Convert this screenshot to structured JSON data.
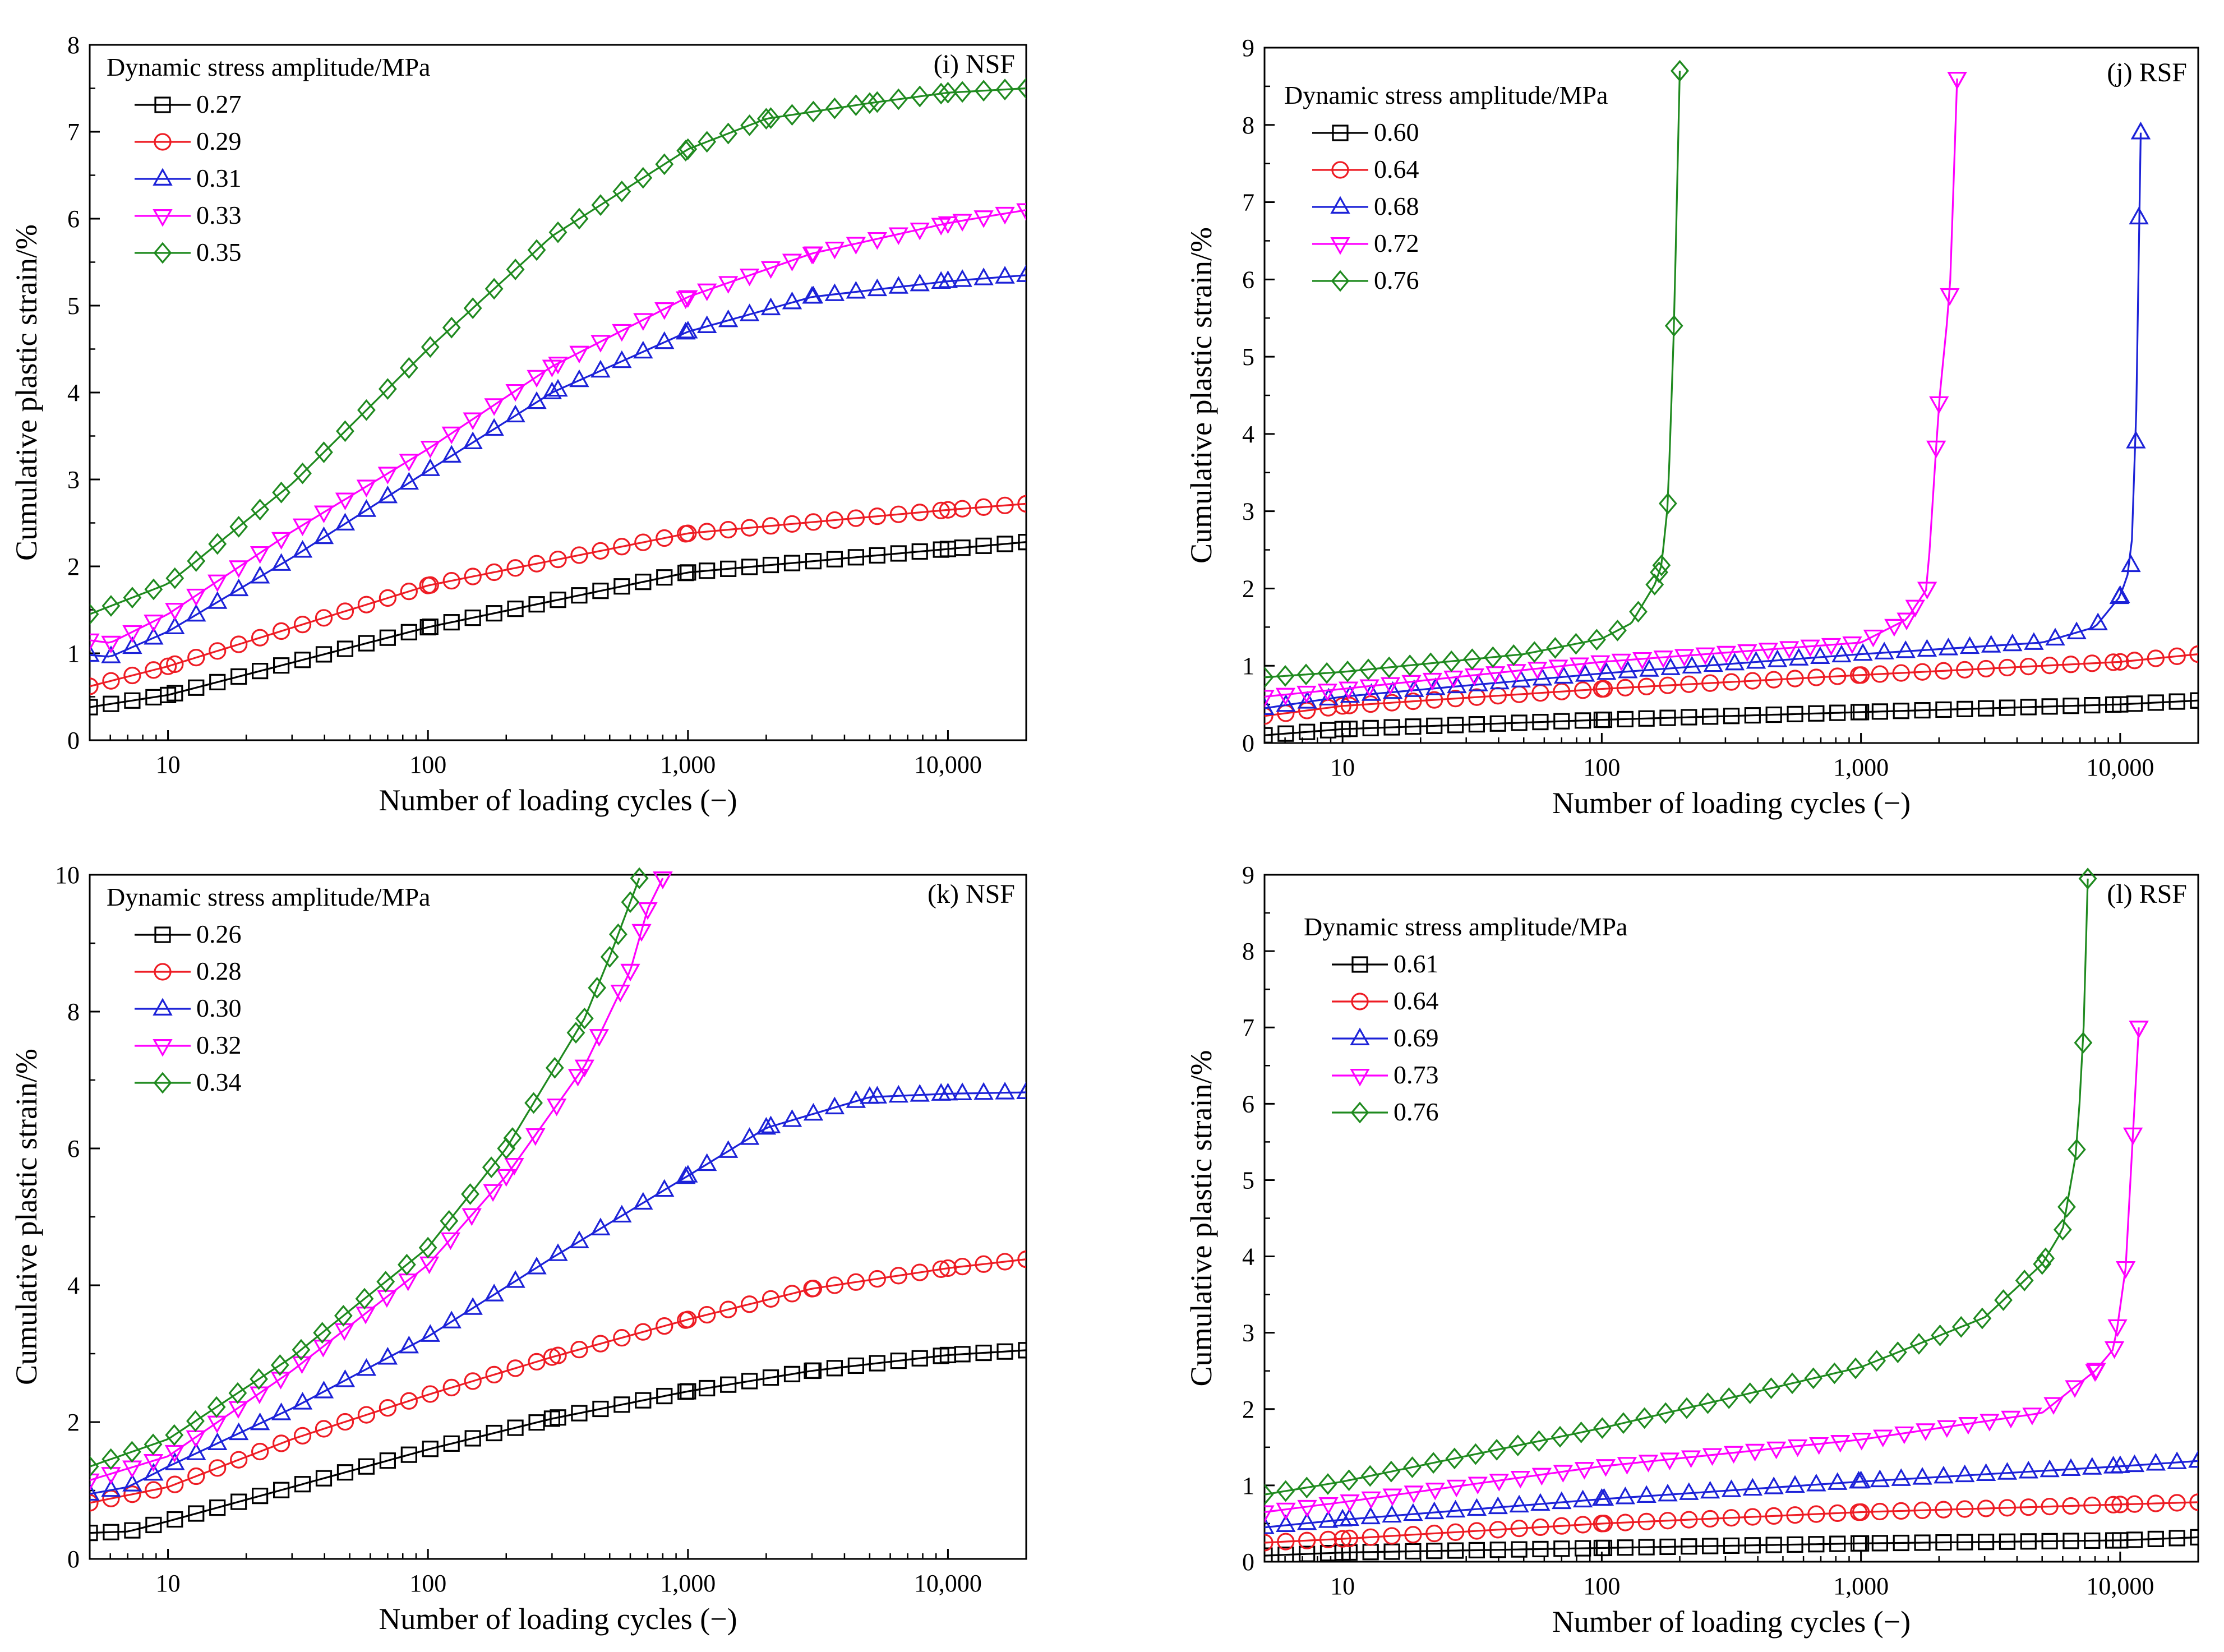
{
  "figure": {
    "colors": {
      "black": "#000000",
      "red": "#ee1c24",
      "blue": "#1c22d8",
      "magenta": "#ff00ff",
      "green": "#1f8a1f"
    },
    "markers": {
      "black": "square",
      "red": "circle",
      "blue": "triangle-up",
      "magenta": "triangle-down",
      "green": "diamond"
    }
  },
  "chart_data": [
    {
      "type": "line",
      "panel": "(i) NSF",
      "xlabel": "Number of loading cycles (−)",
      "ylabel": "Cumulative plastic strain/%",
      "xscale": "log",
      "xlim": [
        5,
        20000
      ],
      "ylim": [
        0,
        8
      ],
      "yticks": [
        0,
        1,
        2,
        3,
        4,
        5,
        6,
        7,
        8
      ],
      "ytick_labels": [
        "0",
        "1",
        "2",
        "3",
        "4",
        "5",
        "6",
        "7",
        "8"
      ],
      "xticks": [
        10,
        100,
        1000,
        10000
      ],
      "xtick_labels": [
        "10",
        "100",
        "1,000",
        "10,000"
      ],
      "legend_title": "Dynamic stress amplitude/MPa",
      "legend_position": "top-left",
      "series": [
        {
          "name": "0.27",
          "color": "black",
          "x": [
            5,
            10,
            100,
            1000,
            10000,
            20000
          ],
          "y": [
            0.38,
            0.52,
            1.3,
            1.93,
            2.2,
            2.28
          ]
        },
        {
          "name": "0.29",
          "color": "red",
          "x": [
            5,
            10,
            100,
            1000,
            10000,
            20000
          ],
          "y": [
            0.62,
            0.85,
            1.78,
            2.38,
            2.65,
            2.72
          ]
        },
        {
          "name": "0.31",
          "color": "blue",
          "x": [
            5,
            6,
            10,
            30,
            100,
            300,
            1000,
            3000,
            10000,
            20000
          ],
          "y": [
            0.98,
            0.96,
            1.25,
            2.1,
            3.1,
            4.0,
            4.7,
            5.1,
            5.28,
            5.35
          ]
        },
        {
          "name": "0.33",
          "color": "magenta",
          "x": [
            5,
            6,
            10,
            30,
            100,
            300,
            1000,
            3000,
            10000,
            20000
          ],
          "y": [
            1.15,
            1.12,
            1.45,
            2.4,
            3.35,
            4.3,
            5.1,
            5.6,
            5.95,
            6.1
          ]
        },
        {
          "name": "0.35",
          "color": "green",
          "x": [
            5,
            10,
            30,
            100,
            300,
            1000,
            2000,
            5000,
            10000,
            20000
          ],
          "y": [
            1.45,
            1.8,
            2.95,
            4.5,
            5.8,
            6.8,
            7.15,
            7.33,
            7.45,
            7.5
          ]
        }
      ]
    },
    {
      "type": "line",
      "panel": "(j) RSF",
      "xlabel": "Number of loading cycles (−)",
      "ylabel": "Cumulative plastic strain/%",
      "xscale": "log",
      "xlim": [
        5,
        20000
      ],
      "ylim": [
        0,
        9
      ],
      "yticks": [
        0,
        1,
        2,
        3,
        4,
        5,
        6,
        7,
        8,
        9
      ],
      "ytick_labels": [
        "0",
        "1",
        "2",
        "3",
        "4",
        "5",
        "6",
        "7",
        "8",
        "9"
      ],
      "xticks": [
        10,
        100,
        1000,
        10000
      ],
      "xtick_labels": [
        "10",
        "100",
        "1,000",
        "10,000"
      ],
      "legend_title": "Dynamic stress amplitude/MPa",
      "legend_position": "top-left",
      "series": [
        {
          "name": "0.60",
          "color": "black",
          "x": [
            5,
            10,
            100,
            1000,
            10000,
            20000
          ],
          "y": [
            0.1,
            0.18,
            0.3,
            0.4,
            0.5,
            0.55
          ]
        },
        {
          "name": "0.64",
          "color": "red",
          "x": [
            5,
            10,
            100,
            1000,
            10000,
            20000
          ],
          "y": [
            0.35,
            0.48,
            0.7,
            0.88,
            1.05,
            1.15
          ]
        },
        {
          "name": "0.68",
          "color": "blue",
          "x": [
            5,
            10,
            100,
            1000,
            5000,
            8000,
            10000,
            11000,
            11500,
            11800,
            12000
          ],
          "y": [
            0.45,
            0.6,
            0.9,
            1.15,
            1.3,
            1.5,
            1.9,
            2.3,
            3.9,
            6.8,
            7.9
          ]
        },
        {
          "name": "0.72",
          "color": "magenta",
          "x": [
            5,
            10,
            100,
            1000,
            1500,
            1800,
            2000,
            2200,
            2350
          ],
          "y": [
            0.6,
            0.7,
            1.05,
            1.3,
            1.6,
            2.0,
            4.4,
            5.8,
            8.6
          ]
        },
        {
          "name": "0.76",
          "color": "green",
          "x": [
            5,
            10,
            50,
            100,
            130,
            160,
            170,
            180,
            190,
            200
          ],
          "y": [
            0.85,
            0.92,
            1.15,
            1.35,
            1.55,
            2.05,
            2.3,
            3.1,
            5.4,
            8.7
          ]
        }
      ]
    },
    {
      "type": "line",
      "panel": "(k) NSF",
      "xlabel": "Number of loading cycles (−)",
      "ylabel": "Cumulative plastic strain/%",
      "xscale": "log",
      "xlim": [
        5,
        20000
      ],
      "ylim": [
        0,
        10
      ],
      "yticks": [
        0,
        2,
        4,
        6,
        8,
        10
      ],
      "ytick_labels": [
        "0",
        "2",
        "4",
        "6",
        "8",
        "10"
      ],
      "xticks": [
        10,
        100,
        1000,
        10000
      ],
      "xtick_labels": [
        "10",
        "100",
        "1,000",
        "10,000"
      ],
      "legend_title": "Dynamic stress amplitude/MPa",
      "legend_position": "top-left",
      "series": [
        {
          "name": "0.26",
          "color": "black",
          "x": [
            5,
            7,
            10,
            30,
            100,
            300,
            1000,
            3000,
            10000,
            20000
          ],
          "y": [
            0.38,
            0.4,
            0.55,
            1.05,
            1.6,
            2.05,
            2.45,
            2.75,
            2.98,
            3.05
          ]
        },
        {
          "name": "0.28",
          "color": "red",
          "x": [
            5,
            10,
            30,
            100,
            300,
            1000,
            3000,
            10000,
            20000
          ],
          "y": [
            0.82,
            1.05,
            1.75,
            2.4,
            2.95,
            3.5,
            3.95,
            4.25,
            4.38
          ]
        },
        {
          "name": "0.30",
          "color": "blue",
          "x": [
            5,
            7,
            10,
            30,
            100,
            300,
            1000,
            2000,
            5000,
            10000,
            20000
          ],
          "y": [
            0.95,
            1.05,
            1.35,
            2.2,
            3.25,
            4.4,
            5.6,
            6.3,
            6.75,
            6.8,
            6.82
          ]
        },
        {
          "name": "0.32",
          "color": "magenta",
          "x": [
            5,
            10,
            30,
            100,
            200,
            400,
            600,
            700,
            800
          ],
          "y": [
            1.15,
            1.5,
            2.75,
            4.3,
            5.6,
            7.2,
            8.6,
            9.5,
            9.95
          ]
        },
        {
          "name": "0.34",
          "color": "green",
          "x": [
            5,
            10,
            30,
            100,
            200,
            400,
            500,
            600,
            650
          ],
          "y": [
            1.35,
            1.75,
            2.95,
            4.55,
            6.0,
            7.9,
            8.8,
            9.6,
            9.95
          ]
        }
      ]
    },
    {
      "type": "line",
      "panel": "(l) RSF",
      "xlabel": "Number of loading cycles (−)",
      "ylabel": "Cumulative plastic strain/%",
      "xscale": "log",
      "xlim": [
        5,
        20000
      ],
      "ylim": [
        0,
        9
      ],
      "yticks": [
        0,
        1,
        2,
        3,
        4,
        5,
        6,
        7,
        8,
        9
      ],
      "ytick_labels": [
        "0",
        "1",
        "2",
        "3",
        "4",
        "5",
        "6",
        "7",
        "8",
        "9"
      ],
      "xticks": [
        10,
        100,
        1000,
        10000
      ],
      "xtick_labels": [
        "10",
        "100",
        "1,000",
        "10,000"
      ],
      "legend_title": "Dynamic stress amplitude/MPa",
      "legend_position": "top-left",
      "series": [
        {
          "name": "0.61",
          "color": "black",
          "x": [
            5,
            10,
            100,
            1000,
            10000,
            20000
          ],
          "y": [
            0.08,
            0.12,
            0.18,
            0.24,
            0.28,
            0.32
          ]
        },
        {
          "name": "0.64",
          "color": "red",
          "x": [
            5,
            10,
            100,
            1000,
            10000,
            20000
          ],
          "y": [
            0.25,
            0.3,
            0.5,
            0.65,
            0.75,
            0.78
          ]
        },
        {
          "name": "0.69",
          "color": "blue",
          "x": [
            5,
            10,
            100,
            1000,
            10000,
            20000
          ],
          "y": [
            0.45,
            0.55,
            0.82,
            1.05,
            1.25,
            1.32
          ]
        },
        {
          "name": "0.73",
          "color": "magenta",
          "x": [
            5,
            10,
            100,
            1000,
            5000,
            8000,
            9500,
            10500,
            11200,
            11800
          ],
          "y": [
            0.65,
            0.78,
            1.25,
            1.6,
            1.95,
            2.5,
            2.8,
            3.85,
            5.6,
            7.0
          ]
        },
        {
          "name": "0.76",
          "color": "green",
          "x": [
            5,
            10,
            100,
            1000,
            3000,
            5000,
            6000,
            6800,
            7200,
            7500
          ],
          "y": [
            0.88,
            1.05,
            1.75,
            2.55,
            3.2,
            3.9,
            4.35,
            5.4,
            6.8,
            8.95
          ]
        }
      ]
    }
  ]
}
